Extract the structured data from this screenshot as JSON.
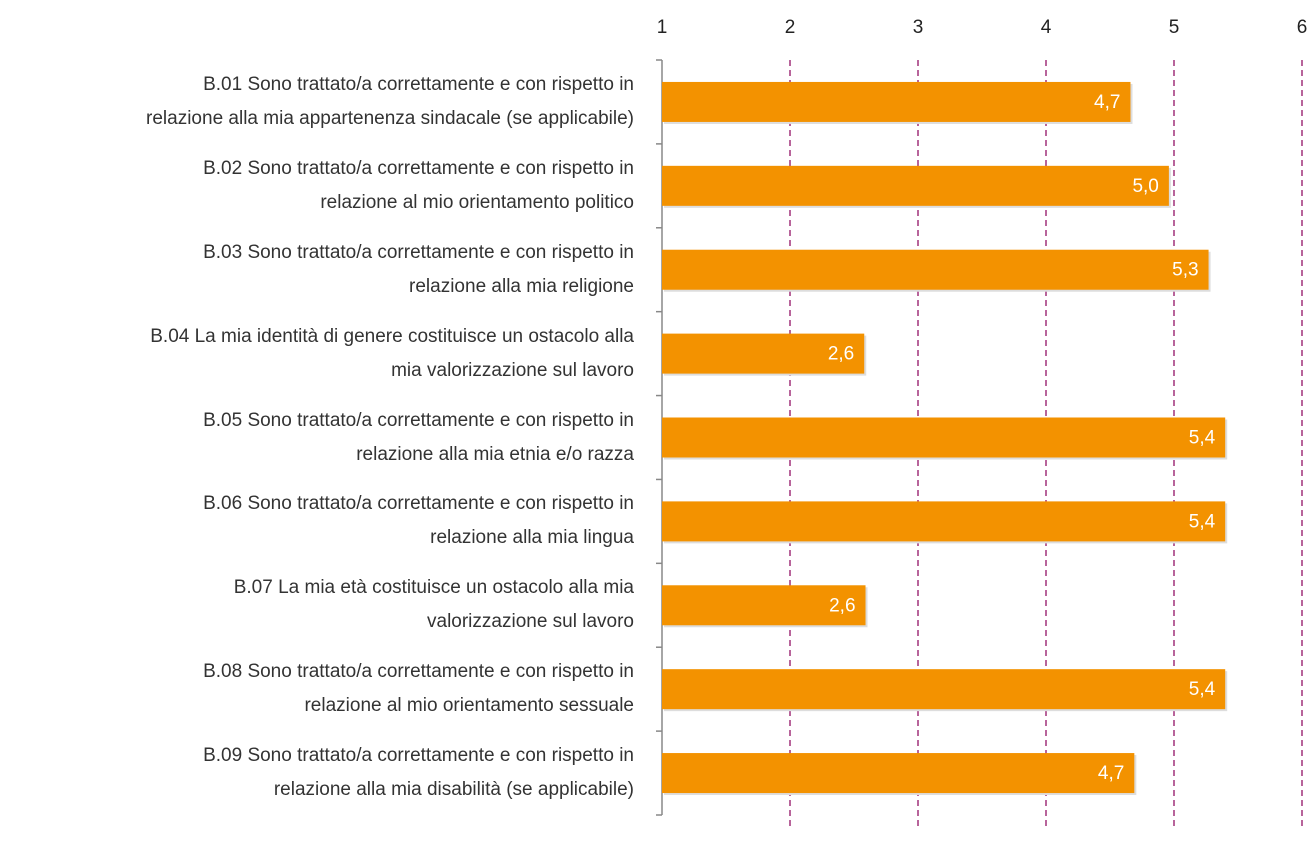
{
  "chart_data": {
    "type": "bar",
    "orientation": "horizontal",
    "categories": [
      "B.01 Sono trattato/a correttamente e con rispetto in\nrelazione alla mia appartenenza sindacale (se applicabile)",
      "B.02 Sono trattato/a correttamente e con rispetto in\nrelazione al mio orientamento politico",
      "B.03 Sono trattato/a correttamente e con rispetto in\nrelazione alla mia religione",
      "B.04 La mia identità di genere costituisce un ostacolo alla\nmia valorizzazione sul lavoro",
      "B.05 Sono trattato/a correttamente e con rispetto in\nrelazione alla mia etnia e/o razza",
      "B.06 Sono trattato/a correttamente e con rispetto in\nrelazione alla mia lingua",
      "B.07 La mia età costituisce un ostacolo alla mia\nvalorizzazione sul lavoro",
      "B.08 Sono trattato/a correttamente e con rispetto in\nrelazione al mio orientamento sessuale",
      "B.09 Sono trattato/a correttamente e con rispetto in\nrelazione alla mia disabilità (se applicabile)"
    ],
    "values": [
      4.66,
      4.96,
      5.27,
      2.58,
      5.4,
      5.4,
      2.59,
      5.4,
      4.69
    ],
    "value_labels": [
      "4,7",
      "5,0",
      "5,3",
      "2,6",
      "5,4",
      "5,4",
      "2,6",
      "5,4",
      "4,7"
    ],
    "color": "#f39200",
    "xlim": [
      1,
      6
    ],
    "xticks": [
      1,
      2,
      3,
      4,
      5,
      6
    ],
    "grid": true,
    "grid_color": "#a0307a"
  }
}
